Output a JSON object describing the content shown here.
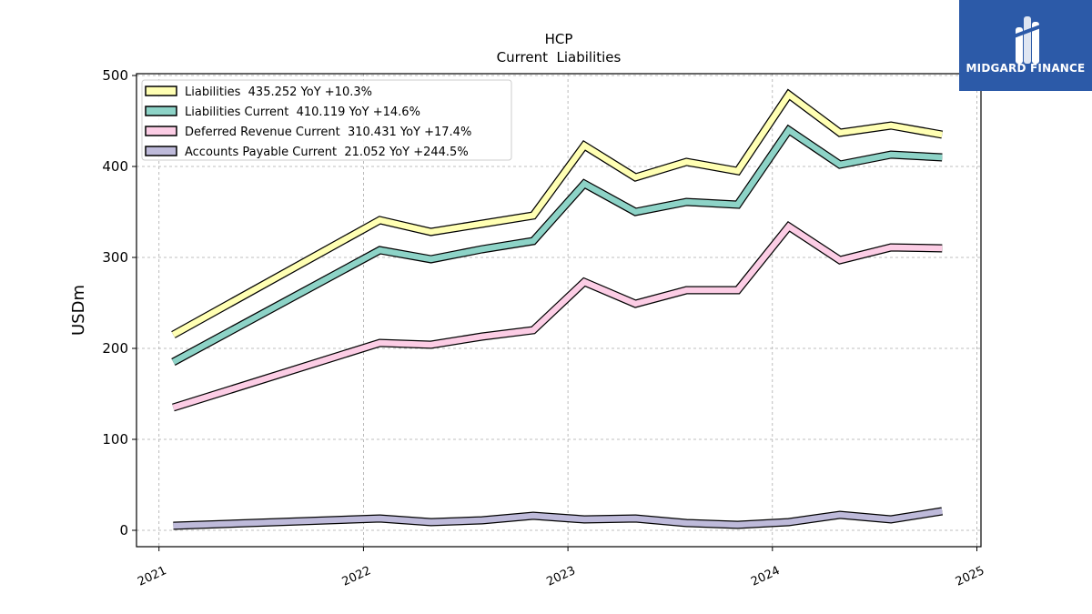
{
  "chart_data": {
    "type": "line",
    "title": "HCP",
    "subtitle": "Current  Liabilities",
    "ylabel": "USDm",
    "xlabel": "",
    "ylim": [
      -18,
      502
    ],
    "xlim": [
      2020.89,
      2025.02
    ],
    "yticks": [
      0,
      100,
      200,
      300,
      400,
      500
    ],
    "xticks": [
      2021,
      2022,
      2023,
      2024,
      2025
    ],
    "grid": true,
    "legend_position": "top-left",
    "series": [
      {
        "name": "Liabilities  435.252 YoY +10.3%",
        "color": "#ffffb3",
        "points": [
          [
            2021.07,
            215
          ],
          [
            2022.08,
            341
          ],
          [
            2022.33,
            328
          ],
          [
            2022.58,
            337
          ],
          [
            2022.83,
            346
          ],
          [
            2023.08,
            423
          ],
          [
            2023.33,
            388
          ],
          [
            2023.58,
            405
          ],
          [
            2023.83,
            395
          ],
          [
            2024.08,
            479
          ],
          [
            2024.33,
            437
          ],
          [
            2024.58,
            445
          ],
          [
            2024.83,
            435
          ]
        ]
      },
      {
        "name": "Liabilities Current  410.119 YoY +14.6%",
        "color": "#8dd3c7",
        "points": [
          [
            2021.07,
            185
          ],
          [
            2022.08,
            308
          ],
          [
            2022.33,
            298
          ],
          [
            2022.58,
            309
          ],
          [
            2022.83,
            318
          ],
          [
            2023.08,
            381
          ],
          [
            2023.33,
            350
          ],
          [
            2023.58,
            361
          ],
          [
            2023.83,
            358
          ],
          [
            2024.08,
            440
          ],
          [
            2024.33,
            402
          ],
          [
            2024.58,
            413
          ],
          [
            2024.83,
            410
          ]
        ]
      },
      {
        "name": "Deferred Revenue Current  310.431 YoY +17.4%",
        "color": "#fccde5",
        "points": [
          [
            2021.07,
            135
          ],
          [
            2022.08,
            206
          ],
          [
            2022.33,
            204
          ],
          [
            2022.58,
            213
          ],
          [
            2022.83,
            220
          ],
          [
            2023.08,
            273
          ],
          [
            2023.33,
            249
          ],
          [
            2023.58,
            264
          ],
          [
            2023.83,
            264
          ],
          [
            2024.08,
            334
          ],
          [
            2024.33,
            297
          ],
          [
            2024.58,
            311
          ],
          [
            2024.83,
            310
          ]
        ]
      },
      {
        "name": "Accounts Payable Current  21.052 YoY +244.5%",
        "color": "#bebada",
        "points": [
          [
            2021.07,
            5
          ],
          [
            2022.08,
            13
          ],
          [
            2022.33,
            9
          ],
          [
            2022.58,
            11
          ],
          [
            2022.83,
            16
          ],
          [
            2023.08,
            12
          ],
          [
            2023.33,
            13
          ],
          [
            2023.58,
            8
          ],
          [
            2023.83,
            6
          ],
          [
            2024.08,
            9
          ],
          [
            2024.33,
            17
          ],
          [
            2024.58,
            12
          ],
          [
            2024.83,
            21
          ]
        ]
      }
    ]
  },
  "logo": {
    "text": "MIDGARD FINANCE"
  }
}
